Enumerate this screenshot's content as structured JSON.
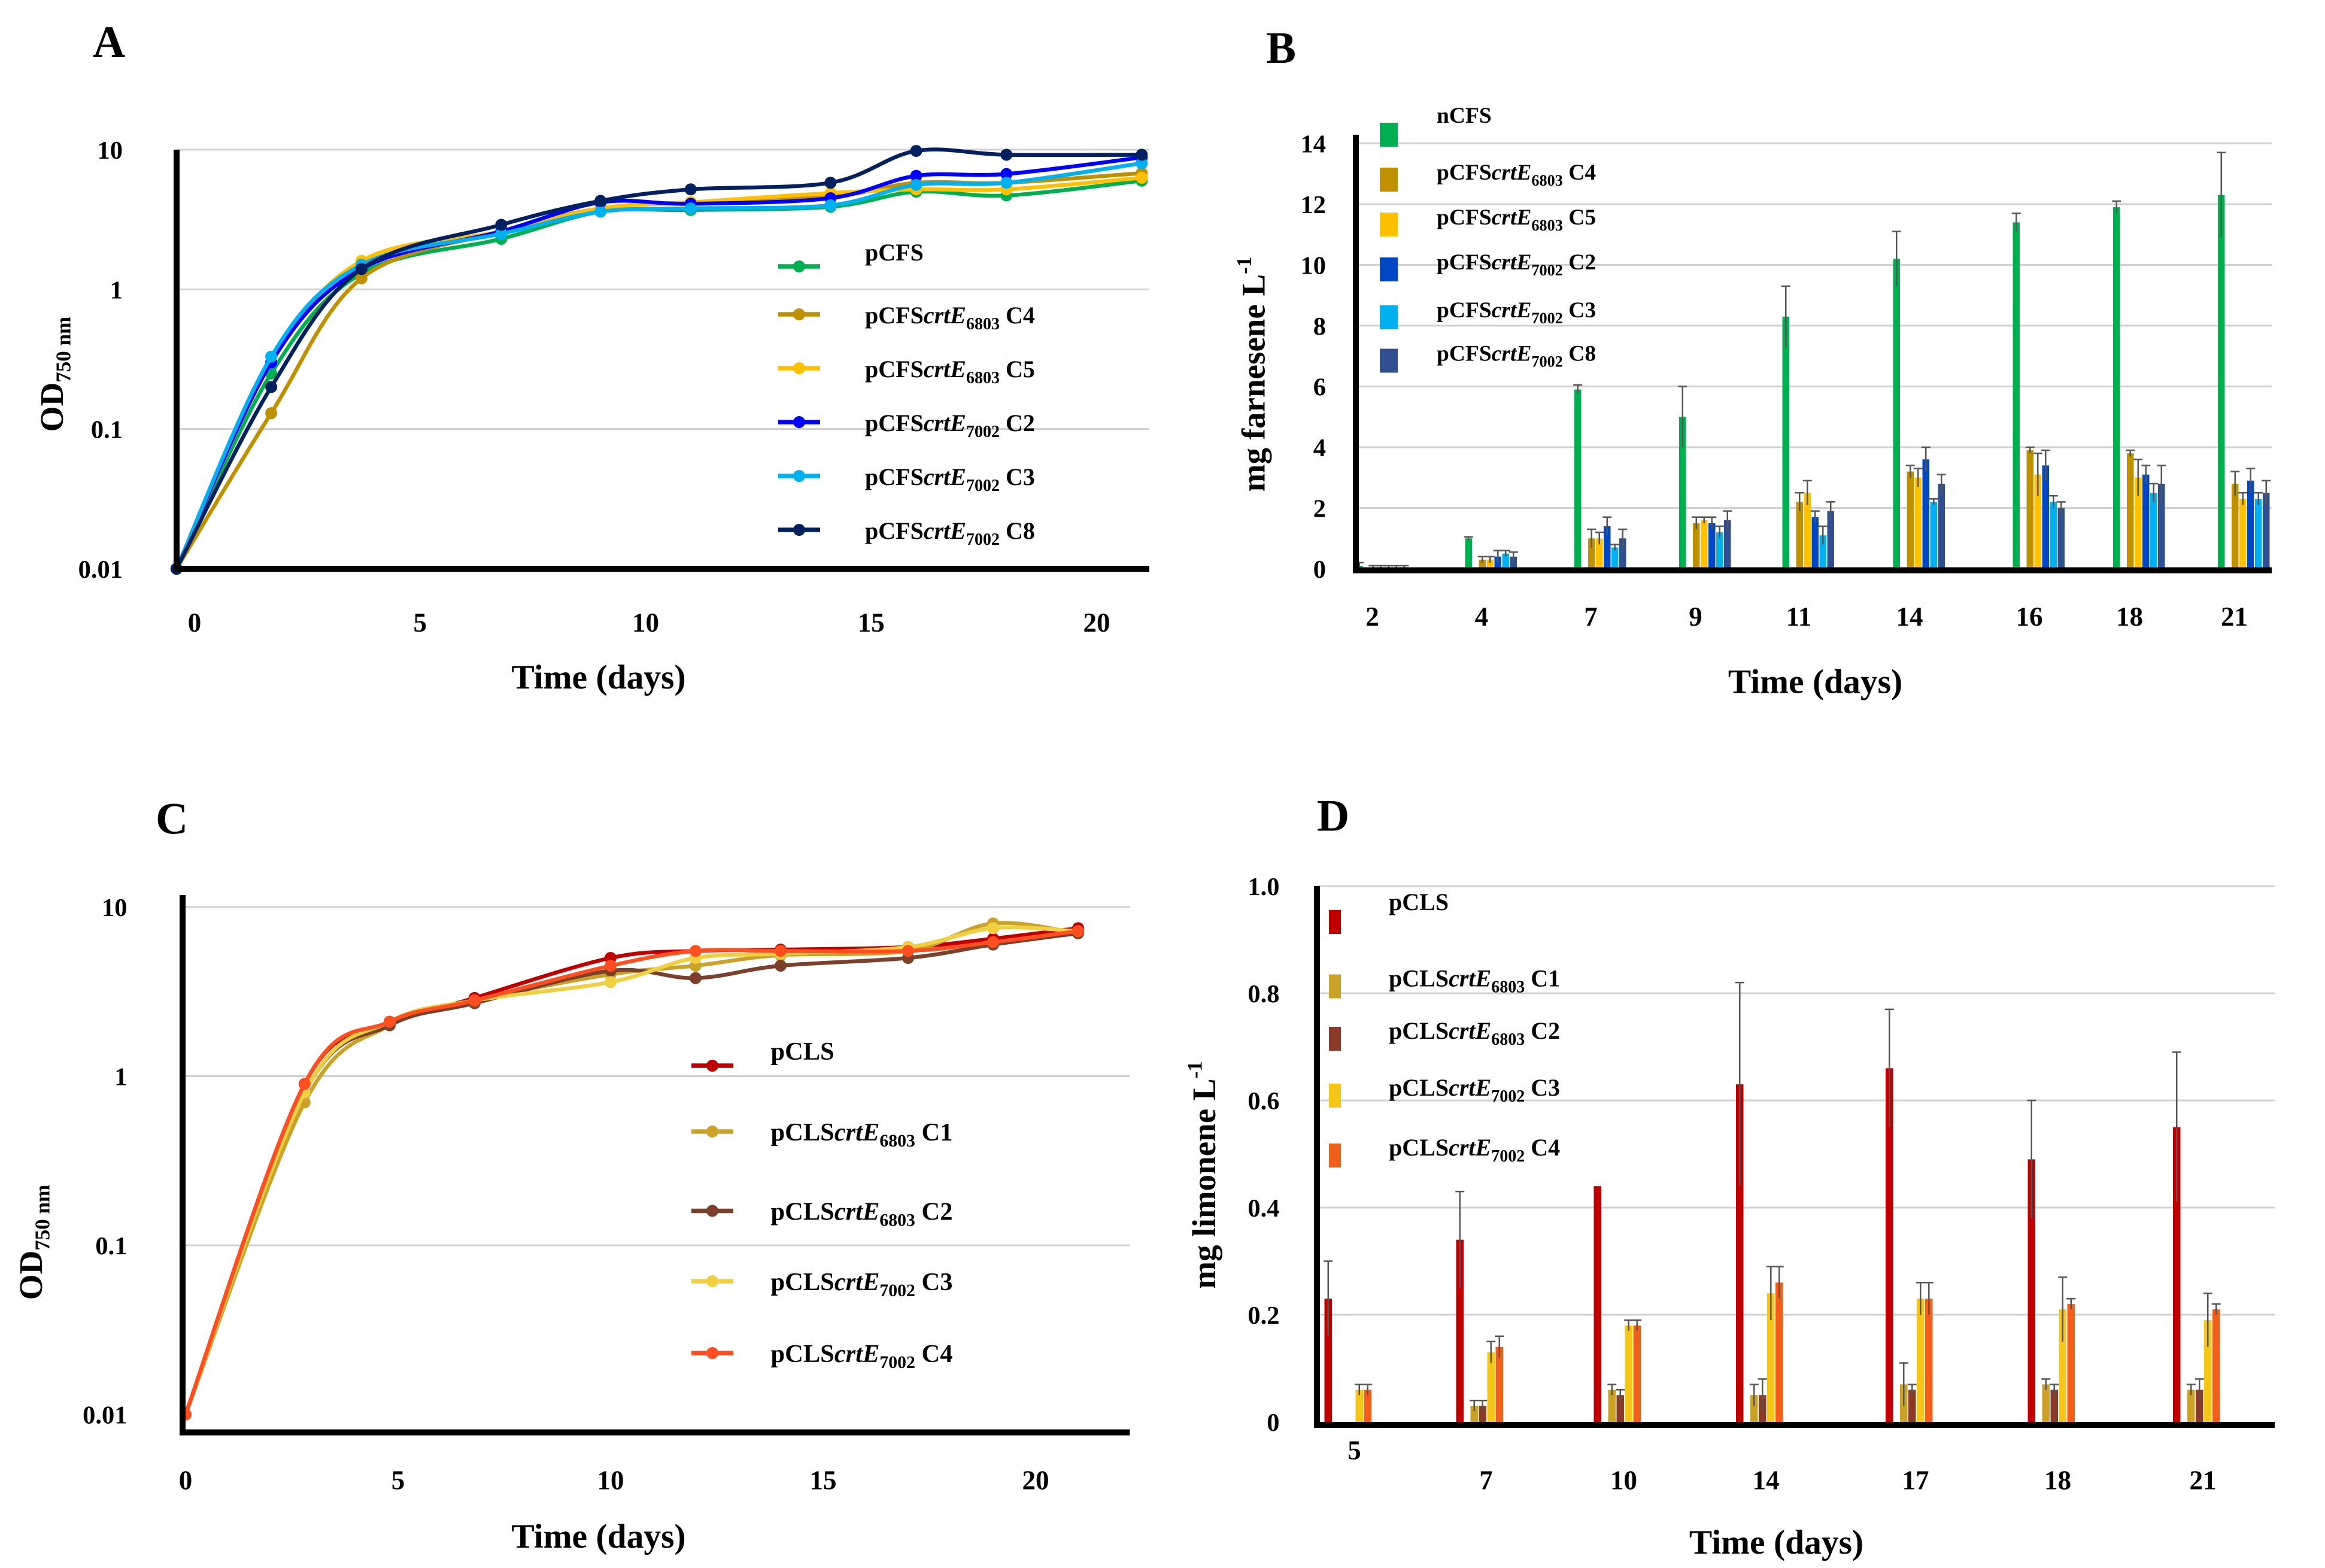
{
  "panels": {
    "a": "A",
    "b": "B",
    "c": "C",
    "d": "D"
  },
  "chart_data": [
    {
      "type": "line",
      "panel": "A",
      "xlabel": "Time (days)",
      "ylabel": {
        "main": "OD",
        "sub": "750 nm"
      },
      "yscale": "log",
      "ylim": [
        0.01,
        10
      ],
      "xlim": [
        -0.4,
        21.2
      ],
      "yticks": [
        "10",
        "1",
        "0.1",
        "0.01"
      ],
      "xticks": [
        "0",
        "5",
        "10",
        "15",
        "20"
      ],
      "grid": true,
      "legend": "right",
      "x": [
        -0.4,
        1.7,
        3.7,
        6.8,
        9,
        11,
        14.1,
        16,
        18,
        21
      ],
      "series": [
        {
          "name": {
            "pre": "pCFS",
            "it": "",
            "sub": "",
            "post": ""
          },
          "color": "#00b050",
          "values": [
            0.01,
            0.25,
            1.3,
            2.3,
            3.6,
            3.7,
            3.9,
            5.0,
            4.7,
            6.0
          ]
        },
        {
          "name": {
            "pre": "pCFS",
            "it": "crtE",
            "sub": "6803",
            "post": " C4"
          },
          "color": "#bf9000",
          "values": [
            0.01,
            0.13,
            1.2,
            2.6,
            3.8,
            4.2,
            4.6,
            5.8,
            5.8,
            6.8
          ]
        },
        {
          "name": {
            "pre": "pCFS",
            "it": "crtE",
            "sub": "6803",
            "post": " C5"
          },
          "color": "#ffc000",
          "values": [
            0.01,
            0.3,
            1.6,
            2.6,
            3.8,
            4.2,
            4.9,
            5.2,
            5.2,
            6.3
          ]
        },
        {
          "name": {
            "pre": "pCFS",
            "it": "crtE",
            "sub": "7002",
            "post": " C2"
          },
          "color": "#0000ff",
          "values": [
            0.01,
            0.3,
            1.4,
            2.6,
            4.2,
            4.1,
            4.5,
            6.5,
            6.7,
            8.8
          ]
        },
        {
          "name": {
            "pre": "pCFS",
            "it": "crtE",
            "sub": "7002",
            "post": " C3"
          },
          "color": "#00b0f0",
          "values": [
            0.01,
            0.33,
            1.5,
            2.5,
            3.6,
            3.8,
            4.0,
            5.6,
            5.8,
            8.0
          ]
        },
        {
          "name": {
            "pre": "pCFS",
            "it": "crtE",
            "sub": "7002",
            "post": " C8"
          },
          "color": "#002060",
          "values": [
            0.01,
            0.2,
            1.4,
            2.9,
            4.3,
            5.2,
            5.8,
            9.8,
            9.2,
            9.2
          ]
        }
      ]
    },
    {
      "type": "bar",
      "panel": "B",
      "xlabel": "Time (days)",
      "ylabel": {
        "main": "mg farnesene L",
        "sup": "-1"
      },
      "ylim": [
        0,
        14
      ],
      "yticks": [
        "0",
        "2",
        "4",
        "6",
        "8",
        "10",
        "12",
        "14"
      ],
      "grid": true,
      "legend": "top-left",
      "categories": [
        "2",
        "4",
        "7",
        "9",
        "11",
        "14",
        "16",
        "18",
        "21"
      ],
      "series": [
        {
          "name": {
            "pre": "nCFS",
            "it": "",
            "sub": "",
            "post": ""
          },
          "color": "#00b050",
          "values": [
            0.1,
            1.0,
            5.9,
            5.0,
            8.3,
            10.2,
            11.4,
            11.9,
            12.3
          ],
          "error": [
            0.1,
            0.05,
            0.15,
            1.0,
            1.0,
            0.9,
            0.3,
            0.2,
            1.4
          ]
        },
        {
          "name": {
            "pre": "pCFS",
            "it": "crtE",
            "sub": "6803",
            "post": " C4"
          },
          "color": "#bf9000",
          "values": [
            0.05,
            0.3,
            1.0,
            1.5,
            2.2,
            3.2,
            3.9,
            3.8,
            2.8
          ],
          "error": [
            0.05,
            0.1,
            0.3,
            0.2,
            0.3,
            0.2,
            0.1,
            0.1,
            0.4
          ]
        },
        {
          "name": {
            "pre": "pCFS",
            "it": "crtE",
            "sub": "6803",
            "post": " C5"
          },
          "color": "#ffc000",
          "values": [
            0.05,
            0.3,
            1.0,
            1.6,
            2.5,
            3.0,
            3.1,
            3.0,
            2.3
          ],
          "error": [
            0.05,
            0.1,
            0.2,
            0.1,
            0.4,
            0.3,
            0.7,
            0.6,
            0.2
          ]
        },
        {
          "name": {
            "pre": "pCFS",
            "it": "crtE",
            "sub": "7002",
            "post": " C2"
          },
          "color": "#0047c4",
          "values": [
            0.05,
            0.4,
            1.4,
            1.5,
            1.7,
            3.6,
            3.4,
            3.1,
            2.9
          ],
          "error": [
            0.05,
            0.2,
            0.3,
            0.2,
            0.2,
            0.4,
            0.5,
            0.3,
            0.4
          ]
        },
        {
          "name": {
            "pre": "pCFS",
            "it": "crtE",
            "sub": "7002",
            "post": " C3"
          },
          "color": "#00b0f0",
          "values": [
            0.05,
            0.5,
            0.7,
            1.2,
            1.1,
            2.2,
            2.2,
            2.5,
            2.3
          ],
          "error": [
            0.05,
            0.1,
            0.1,
            0.2,
            0.3,
            0.1,
            0.2,
            0.3,
            0.2
          ]
        },
        {
          "name": {
            "pre": "pCFS",
            "it": "crtE",
            "sub": "7002",
            "post": " C8"
          },
          "color": "#2f4f8f",
          "values": [
            0.05,
            0.4,
            1.0,
            1.6,
            1.9,
            2.8,
            2.0,
            2.8,
            2.5
          ],
          "error": [
            0.05,
            0.15,
            0.3,
            0.3,
            0.3,
            0.3,
            0.2,
            0.6,
            0.4
          ]
        }
      ]
    },
    {
      "type": "line",
      "panel": "C",
      "xlabel": "Time (days)",
      "ylabel": {
        "main": "OD",
        "sub": "750 nm"
      },
      "yscale": "log",
      "ylim": [
        0.01,
        10
      ],
      "xlim": [
        -0.1,
        22.5
      ],
      "yticks": [
        "10",
        "1",
        "0.1",
        "0.01"
      ],
      "xticks": [
        "0",
        "5",
        "10",
        "15",
        "20"
      ],
      "grid": true,
      "legend": "right",
      "x": [
        0,
        2.8,
        4.8,
        6.8,
        10,
        12,
        14,
        17,
        19,
        21
      ],
      "series": [
        {
          "name": {
            "pre": "pCLS",
            "it": "",
            "sub": "",
            "post": ""
          },
          "color": "#c00000",
          "values": [
            0.01,
            0.9,
            2.0,
            2.9,
            5.0,
            5.5,
            5.6,
            5.8,
            6.5,
            7.5
          ]
        },
        {
          "name": {
            "pre": "pCLS",
            "it": "crtE",
            "sub": "6803",
            "post": " C1"
          },
          "color": "#c9a227",
          "values": [
            0.01,
            0.7,
            2.0,
            2.8,
            4.0,
            4.5,
            5.2,
            5.5,
            8.0,
            7.0
          ]
        },
        {
          "name": {
            "pre": "pCLS",
            "it": "crtE",
            "sub": "6803",
            "post": " C2"
          },
          "color": "#7b3f2a",
          "values": [
            0.01,
            0.8,
            2.0,
            2.7,
            4.2,
            3.8,
            4.5,
            5.0,
            6.0,
            7.0
          ]
        },
        {
          "name": {
            "pre": "pCLS",
            "it": "crtE",
            "sub": "7002",
            "post": " C3"
          },
          "color": "#f0d040",
          "values": [
            0.01,
            0.8,
            2.1,
            2.8,
            3.6,
            5.0,
            5.3,
            5.8,
            7.5,
            7.2
          ]
        },
        {
          "name": {
            "pre": "pCLS",
            "it": "crtE",
            "sub": "7002",
            "post": " C4"
          },
          "color": "#ff4f20",
          "values": [
            0.01,
            0.9,
            2.1,
            2.8,
            4.5,
            5.5,
            5.5,
            5.5,
            6.2,
            7.2
          ]
        }
      ]
    },
    {
      "type": "bar",
      "panel": "D",
      "xlabel": "Time (days)",
      "ylabel": {
        "main": "mg limonene L",
        "sup": "-1"
      },
      "ylim": [
        0,
        1.0
      ],
      "yticks": [
        "0",
        "0.2",
        "0.4",
        "0.6",
        "0.8",
        "1.0"
      ],
      "grid": true,
      "legend": "top-left",
      "categories": [
        "5",
        "7",
        "10",
        "14",
        "17",
        "18",
        "21"
      ],
      "series": [
        {
          "name": {
            "pre": "pCLS",
            "it": "",
            "sub": "",
            "post": ""
          },
          "color": "#c00000",
          "values": [
            0.23,
            0.34,
            0.44,
            0.63,
            0.66,
            0.49,
            0.55
          ],
          "error": [
            0.07,
            0.09,
            0,
            0.19,
            0.11,
            0.11,
            0.14
          ]
        },
        {
          "name": {
            "pre": "pCLS",
            "it": "crtE",
            "sub": "6803",
            "post": " C1"
          },
          "color": "#c9a227",
          "values": [
            0,
            0.03,
            0.06,
            0.05,
            0.07,
            0.07,
            0.06
          ],
          "error": [
            0,
            0.01,
            0.01,
            0.02,
            0.04,
            0.01,
            0.01
          ]
        },
        {
          "name": {
            "pre": "pCLS",
            "it": "crtE",
            "sub": "6803",
            "post": " C2"
          },
          "color": "#8b3a2a",
          "values": [
            0,
            0.03,
            0.05,
            0.05,
            0.06,
            0.06,
            0.06
          ],
          "error": [
            0,
            0.01,
            0.01,
            0.03,
            0.01,
            0.01,
            0.02
          ]
        },
        {
          "name": {
            "pre": "pCLS",
            "it": "crtE",
            "sub": "7002",
            "post": " C3"
          },
          "color": "#f5c518",
          "values": [
            0.06,
            0.13,
            0.18,
            0.24,
            0.23,
            0.21,
            0.19
          ],
          "error": [
            0.01,
            0.02,
            0.01,
            0.05,
            0.03,
            0.06,
            0.05
          ]
        },
        {
          "name": {
            "pre": "pCLS",
            "it": "crtE",
            "sub": "7002",
            "post": " C4"
          },
          "color": "#f0601a",
          "values": [
            0.06,
            0.14,
            0.18,
            0.26,
            0.23,
            0.22,
            0.21
          ],
          "error": [
            0.01,
            0.02,
            0.01,
            0.03,
            0.03,
            0.01,
            0.01
          ]
        }
      ]
    }
  ]
}
